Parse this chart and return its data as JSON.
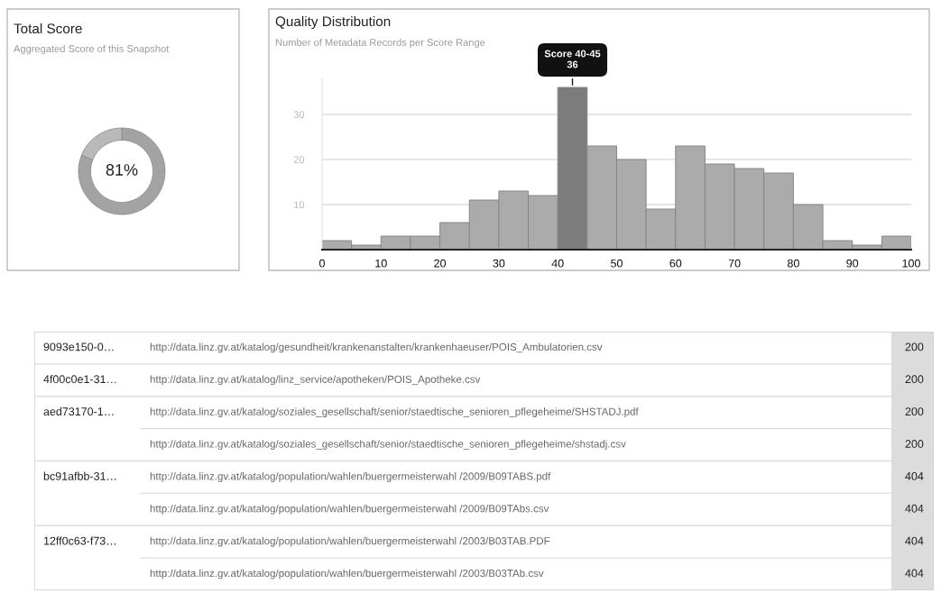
{
  "chart_data": [
    {
      "type": "donut",
      "title": "Total Score",
      "subtitle": "Aggregated Score of this Snapshot",
      "categories": [
        null,
        null
      ],
      "values": [
        81,
        19
      ],
      "colors": [
        "#a3a3a3",
        "#b9b9b9"
      ],
      "annotations": [
        "81%"
      ]
    },
    {
      "type": "histogram",
      "title": "Quality Distribution",
      "subtitle": "Number of Metadata Records per Score Range",
      "bins": [
        0,
        5,
        10,
        15,
        20,
        25,
        30,
        35,
        40,
        45,
        50,
        55,
        60,
        65,
        70,
        75,
        80,
        85,
        90,
        95,
        100
      ],
      "values": [
        2,
        1,
        3,
        3,
        6,
        11,
        13,
        12,
        36,
        23,
        20,
        9,
        23,
        19,
        18,
        17,
        10,
        2,
        1,
        3
      ],
      "colors": [
        "#ababab",
        "#ababab",
        "#ababab",
        "#ababab",
        "#ababab",
        "#ababab",
        "#ababab",
        "#ababab",
        "#7c7c7c",
        "#ababab",
        "#ababab",
        "#ababab",
        "#ababab",
        "#ababab",
        "#ababab",
        "#ababab",
        "#ababab",
        "#ababab",
        "#ababab",
        "#ababab"
      ],
      "xlim": [
        0,
        100
      ],
      "xticks": [
        0,
        10,
        20,
        30,
        40,
        50,
        60,
        70,
        80,
        90,
        100
      ],
      "ylim": [
        0,
        38
      ],
      "yticks": [
        10,
        20,
        30
      ],
      "grid": "y",
      "annotations": [
        {
          "text": "Score 40-45\n36",
          "x": 42.5,
          "y": 36
        }
      ]
    },
    {
      "type": "other",
      "categories": [
        "9093e150-0…",
        "4f00c0e1-31…",
        "aed73170-1…",
        null,
        "bc91afbb-31…",
        null,
        "12ff0c63-f73…",
        null
      ],
      "annotations": [
        "http://data.linz.gv.at/katalog/gesundheit/krankenanstalten/krankenhaeuser/POIS_Ambulatorien.csv",
        "http://data.linz.gv.at/katalog/linz_service/apotheken/POIS_Apotheke.csv",
        "http://data.linz.gv.at/katalog/soziales_gesellschaft/senior/staedtische_senioren_pflegeheime/SHSTADJ.pdf",
        "http://data.linz.gv.at/katalog/soziales_gesellschaft/senior/staedtische_senioren_pflegeheime/shstadj.csv",
        "http://data.linz.gv.at/katalog/population/wahlen/buergermeisterwahl /2009/B09TABS.pdf",
        "http://data.linz.gv.at/katalog/population/wahlen/buergermeisterwahl /2009/B09TAbs.csv",
        "http://data.linz.gv.at/katalog/population/wahlen/buergermeisterwahl /2003/B03TAB.PDF",
        "http://data.linz.gv.at/katalog/population/wahlen/buergermeisterwahl /2003/B03TAb.csv"
      ],
      "values": [
        200,
        200,
        200,
        200,
        404,
        404,
        404,
        404
      ],
      "data_labels": true
    }
  ]
}
